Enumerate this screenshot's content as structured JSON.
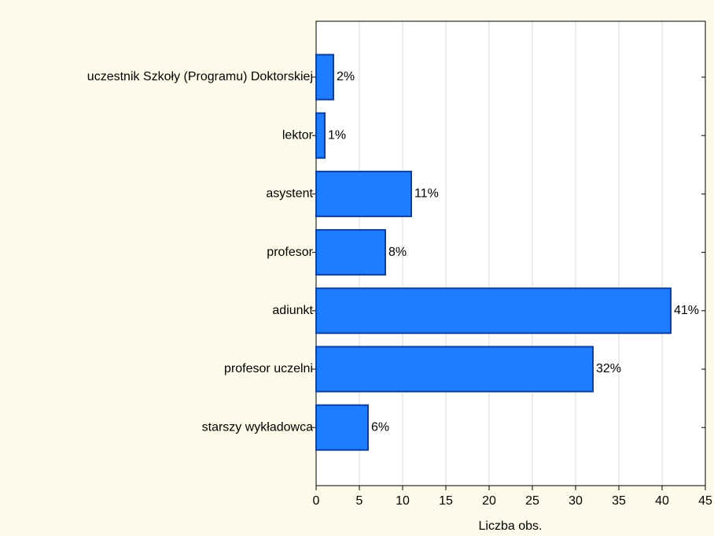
{
  "chart_data": {
    "type": "bar",
    "orientation": "horizontal",
    "categories": [
      "uczestnik Szkoły (Programu) Doktorskiej",
      "lektor",
      "asystent",
      "profesor",
      "adiunkt",
      "profesor uczelni",
      "starszy wykładowca"
    ],
    "values": [
      2,
      1,
      11,
      8,
      41,
      32,
      6
    ],
    "value_labels": [
      "2%",
      "1%",
      "11%",
      "8%",
      "41%",
      "32%",
      "6%"
    ],
    "color": "#1f7cff",
    "xlabel": "Liczba obs.",
    "xlim": [
      0,
      45
    ],
    "xticks": [
      0,
      5,
      10,
      15,
      20,
      25,
      30,
      35,
      40,
      45
    ],
    "grid": true
  }
}
